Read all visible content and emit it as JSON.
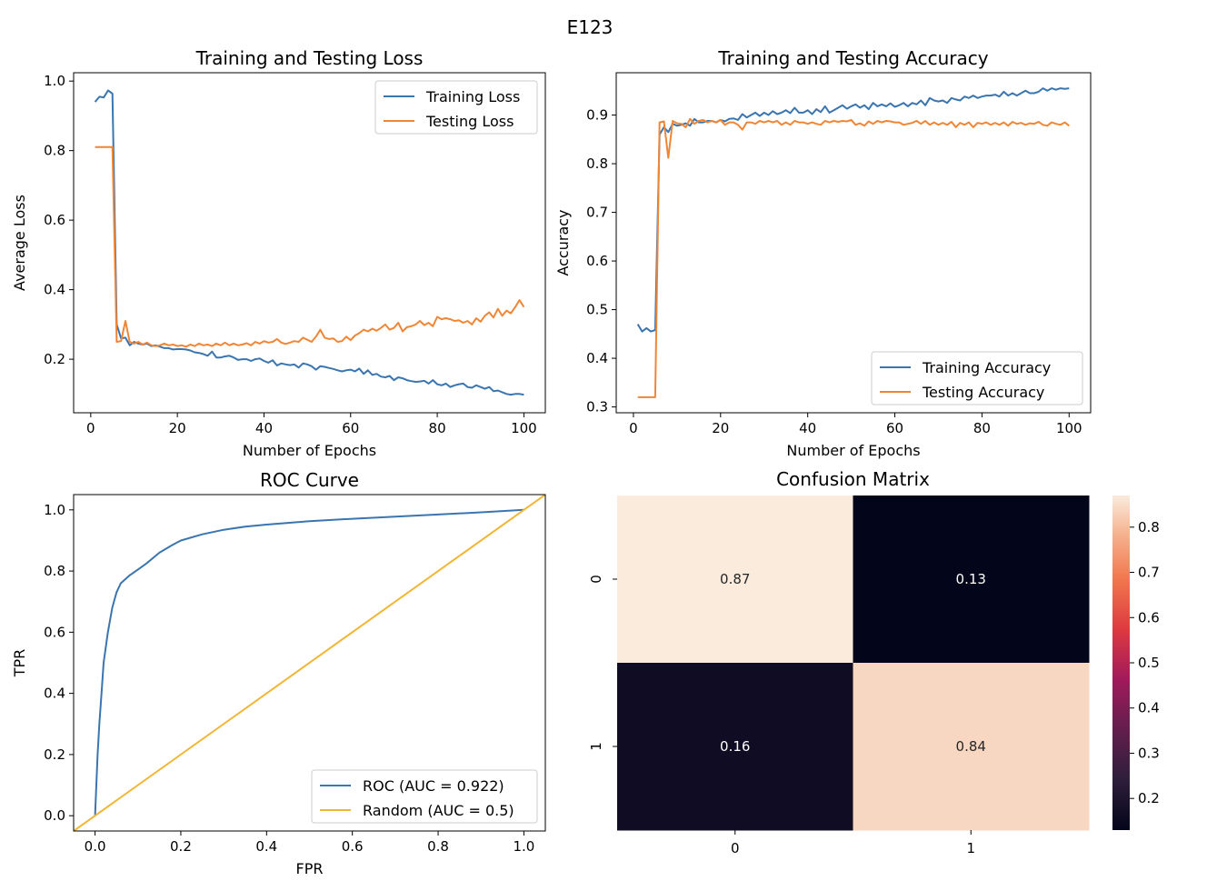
{
  "figure": {
    "title": "E123"
  },
  "chart_data": [
    {
      "id": "loss",
      "type": "line",
      "title": "Training and Testing Loss",
      "xlabel": "Number of Epochs",
      "ylabel": "Average Loss",
      "xlim": [
        -3.95,
        104.95
      ],
      "ylim": [
        0.046,
        1.024
      ],
      "xticks": [
        0,
        20,
        40,
        60,
        80,
        100
      ],
      "yticks": [
        0.2,
        0.4,
        0.6,
        0.8,
        1.0
      ],
      "ytick_labels": [
        "0.2",
        "0.4",
        "0.6",
        "0.8",
        "1.0"
      ],
      "legend_position": "top-right",
      "x_start": 1,
      "series": [
        {
          "name": "Training Loss",
          "color": "#3b75af",
          "values": [
            0.94,
            0.955,
            0.953,
            0.973,
            0.964,
            0.3,
            0.26,
            0.262,
            0.24,
            0.25,
            0.245,
            0.242,
            0.245,
            0.238,
            0.24,
            0.236,
            0.232,
            0.232,
            0.228,
            0.229,
            0.229,
            0.228,
            0.225,
            0.22,
            0.218,
            0.215,
            0.21,
            0.222,
            0.205,
            0.205,
            0.208,
            0.21,
            0.205,
            0.198,
            0.2,
            0.2,
            0.195,
            0.2,
            0.202,
            0.195,
            0.19,
            0.197,
            0.182,
            0.188,
            0.185,
            0.183,
            0.185,
            0.176,
            0.188,
            0.185,
            0.18,
            0.17,
            0.18,
            0.178,
            0.175,
            0.172,
            0.168,
            0.165,
            0.168,
            0.17,
            0.165,
            0.173,
            0.158,
            0.168,
            0.155,
            0.158,
            0.15,
            0.148,
            0.152,
            0.14,
            0.148,
            0.145,
            0.14,
            0.137,
            0.135,
            0.136,
            0.138,
            0.13,
            0.14,
            0.128,
            0.125,
            0.13,
            0.12,
            0.125,
            0.128,
            0.13,
            0.12,
            0.118,
            0.125,
            0.12,
            0.115,
            0.12,
            0.108,
            0.11,
            0.105,
            0.1,
            0.098,
            0.1,
            0.1,
            0.098
          ]
        },
        {
          "name": "Testing Loss",
          "color": "#ef8636",
          "values": [
            0.81,
            0.81,
            0.81,
            0.81,
            0.81,
            0.25,
            0.252,
            0.31,
            0.25,
            0.245,
            0.25,
            0.242,
            0.248,
            0.24,
            0.238,
            0.24,
            0.245,
            0.24,
            0.242,
            0.238,
            0.24,
            0.236,
            0.242,
            0.238,
            0.245,
            0.24,
            0.242,
            0.238,
            0.245,
            0.24,
            0.248,
            0.24,
            0.245,
            0.24,
            0.242,
            0.246,
            0.24,
            0.25,
            0.245,
            0.252,
            0.248,
            0.25,
            0.258,
            0.248,
            0.244,
            0.248,
            0.252,
            0.25,
            0.262,
            0.256,
            0.25,
            0.265,
            0.285,
            0.262,
            0.258,
            0.26,
            0.25,
            0.252,
            0.265,
            0.255,
            0.268,
            0.275,
            0.285,
            0.28,
            0.288,
            0.282,
            0.29,
            0.3,
            0.285,
            0.29,
            0.305,
            0.28,
            0.292,
            0.295,
            0.3,
            0.31,
            0.298,
            0.305,
            0.295,
            0.322,
            0.315,
            0.318,
            0.315,
            0.31,
            0.312,
            0.305,
            0.31,
            0.3,
            0.318,
            0.308,
            0.325,
            0.335,
            0.32,
            0.345,
            0.325,
            0.34,
            0.332,
            0.35,
            0.37,
            0.35
          ]
        }
      ]
    },
    {
      "id": "accuracy",
      "type": "line",
      "title": "Training and Testing Accuracy",
      "xlabel": "Number of Epochs",
      "ylabel": "Accuracy",
      "xlim": [
        -3.95,
        104.95
      ],
      "ylim": [
        0.288,
        0.987
      ],
      "xticks": [
        0,
        20,
        40,
        60,
        80,
        100
      ],
      "yticks": [
        0.3,
        0.4,
        0.5,
        0.6,
        0.7,
        0.8,
        0.9
      ],
      "ytick_labels": [
        "0.3",
        "0.4",
        "0.5",
        "0.6",
        "0.7",
        "0.8",
        "0.9"
      ],
      "legend_position": "bottom-right",
      "x_start": 1,
      "series": [
        {
          "name": "Training Accuracy",
          "color": "#3b75af",
          "values": [
            0.47,
            0.455,
            0.462,
            0.455,
            0.458,
            0.86,
            0.875,
            0.865,
            0.882,
            0.878,
            0.88,
            0.883,
            0.878,
            0.892,
            0.885,
            0.885,
            0.888,
            0.888,
            0.885,
            0.89,
            0.887,
            0.892,
            0.893,
            0.89,
            0.902,
            0.895,
            0.9,
            0.905,
            0.898,
            0.905,
            0.9,
            0.908,
            0.902,
            0.905,
            0.91,
            0.904,
            0.915,
            0.905,
            0.905,
            0.91,
            0.902,
            0.912,
            0.906,
            0.918,
            0.905,
            0.91,
            0.915,
            0.92,
            0.913,
            0.918,
            0.922,
            0.915,
            0.92,
            0.912,
            0.925,
            0.918,
            0.922,
            0.918,
            0.924,
            0.917,
            0.92,
            0.925,
            0.918,
            0.925,
            0.922,
            0.93,
            0.92,
            0.935,
            0.93,
            0.928,
            0.93,
            0.925,
            0.935,
            0.932,
            0.93,
            0.938,
            0.935,
            0.94,
            0.935,
            0.938,
            0.94,
            0.94,
            0.942,
            0.938,
            0.948,
            0.94,
            0.945,
            0.94,
            0.945,
            0.95,
            0.945,
            0.945,
            0.948,
            0.955,
            0.95,
            0.955,
            0.952,
            0.955,
            0.954,
            0.955
          ]
        },
        {
          "name": "Testing Accuracy",
          "color": "#ef8636",
          "values": [
            0.32,
            0.32,
            0.32,
            0.32,
            0.32,
            0.885,
            0.887,
            0.812,
            0.888,
            0.883,
            0.882,
            0.875,
            0.892,
            0.882,
            0.888,
            0.89,
            0.885,
            0.888,
            0.885,
            0.89,
            0.88,
            0.885,
            0.885,
            0.88,
            0.87,
            0.885,
            0.885,
            0.882,
            0.888,
            0.885,
            0.888,
            0.885,
            0.888,
            0.88,
            0.885,
            0.88,
            0.888,
            0.885,
            0.885,
            0.882,
            0.885,
            0.882,
            0.88,
            0.888,
            0.885,
            0.888,
            0.886,
            0.888,
            0.887,
            0.89,
            0.88,
            0.883,
            0.878,
            0.887,
            0.882,
            0.888,
            0.885,
            0.888,
            0.887,
            0.885,
            0.885,
            0.88,
            0.882,
            0.884,
            0.888,
            0.882,
            0.888,
            0.88,
            0.885,
            0.88,
            0.884,
            0.88,
            0.886,
            0.875,
            0.884,
            0.88,
            0.885,
            0.875,
            0.884,
            0.882,
            0.885,
            0.88,
            0.884,
            0.88,
            0.885,
            0.878,
            0.886,
            0.882,
            0.884,
            0.88,
            0.883,
            0.882,
            0.886,
            0.88,
            0.878,
            0.885,
            0.882,
            0.88,
            0.885,
            0.878
          ]
        }
      ]
    },
    {
      "id": "roc",
      "type": "line",
      "title": "ROC Curve",
      "xlabel": "FPR",
      "ylabel": "TPR",
      "xlim": [
        -0.05,
        1.05
      ],
      "ylim": [
        -0.05,
        1.05
      ],
      "xticks": [
        0.0,
        0.2,
        0.4,
        0.6,
        0.8,
        1.0
      ],
      "xtick_labels": [
        "0.0",
        "0.2",
        "0.4",
        "0.6",
        "0.8",
        "1.0"
      ],
      "yticks": [
        0.0,
        0.2,
        0.4,
        0.6,
        0.8,
        1.0
      ],
      "ytick_labels": [
        "0.0",
        "0.2",
        "0.4",
        "0.6",
        "0.8",
        "1.0"
      ],
      "legend_position": "bottom-right",
      "series": [
        {
          "name": "ROC (AUC = 0.922)",
          "color": "#3b75af",
          "x": [
            0,
            0.003,
            0.006,
            0.01,
            0.015,
            0.02,
            0.03,
            0.04,
            0.05,
            0.06,
            0.08,
            0.1,
            0.12,
            0.15,
            0.18,
            0.2,
            0.25,
            0.3,
            0.35,
            0.4,
            0.5,
            0.6,
            0.7,
            0.8,
            0.9,
            1.0
          ],
          "y": [
            0,
            0.1,
            0.2,
            0.3,
            0.4,
            0.5,
            0.6,
            0.68,
            0.73,
            0.76,
            0.785,
            0.805,
            0.825,
            0.86,
            0.885,
            0.9,
            0.92,
            0.935,
            0.945,
            0.952,
            0.963,
            0.971,
            0.978,
            0.985,
            0.992,
            1.0
          ]
        },
        {
          "name": "Random (AUC = 0.5)",
          "color": "#f2b636",
          "x": [
            -0.05,
            1.05
          ],
          "y": [
            -0.05,
            1.05
          ]
        }
      ]
    },
    {
      "id": "confusion",
      "type": "heatmap",
      "title": "Confusion Matrix",
      "row_labels": [
        "0",
        "1"
      ],
      "col_labels": [
        "0",
        "1"
      ],
      "values": [
        [
          0.87,
          0.13
        ],
        [
          0.16,
          0.84
        ]
      ],
      "value_labels": [
        [
          "0.87",
          "0.13"
        ],
        [
          "0.16",
          "0.84"
        ]
      ],
      "colorbar_range": [
        0.13,
        0.87
      ],
      "colorbar_ticks": [
        0.2,
        0.3,
        0.4,
        0.5,
        0.6,
        0.7,
        0.8
      ],
      "colorbar_tick_labels": [
        "0.2",
        "0.3",
        "0.4",
        "0.5",
        "0.6",
        "0.7",
        "0.8"
      ],
      "colormap": "rocket"
    }
  ]
}
